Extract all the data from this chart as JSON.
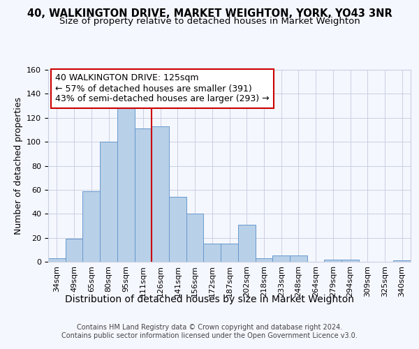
{
  "title1": "40, WALKINGTON DRIVE, MARKET WEIGHTON, YORK, YO43 3NR",
  "title2": "Size of property relative to detached houses in Market Weighton",
  "xlabel": "Distribution of detached houses by size in Market Weighton",
  "ylabel": "Number of detached properties",
  "categories": [
    "34sqm",
    "49sqm",
    "65sqm",
    "80sqm",
    "95sqm",
    "111sqm",
    "126sqm",
    "141sqm",
    "156sqm",
    "172sqm",
    "187sqm",
    "202sqm",
    "218sqm",
    "233sqm",
    "248sqm",
    "264sqm",
    "279sqm",
    "294sqm",
    "309sqm",
    "325sqm",
    "340sqm"
  ],
  "values": [
    3,
    19,
    59,
    100,
    133,
    111,
    113,
    54,
    40,
    15,
    15,
    31,
    3,
    5,
    5,
    0,
    2,
    2,
    0,
    0,
    1
  ],
  "bar_color": "#b8d0e8",
  "bar_edge_color": "#6699cc",
  "vline_color": "#cc0000",
  "vline_x_index": 5.5,
  "annotation_line1": "40 WALKINGTON DRIVE: 125sqm",
  "annotation_line2": "← 57% of detached houses are smaller (391)",
  "annotation_line3": "43% of semi-detached houses are larger (293) →",
  "footer1": "Contains HM Land Registry data © Crown copyright and database right 2024.",
  "footer2": "Contains public sector information licensed under the Open Government Licence v3.0.",
  "background_color": "#f5f7ff",
  "plot_bg_color": "#f5f7ff",
  "grid_color": "#c8d0e0",
  "ylim": [
    0,
    160
  ],
  "title_fontsize": 10.5,
  "subtitle_fontsize": 9.5,
  "ylabel_fontsize": 9,
  "xlabel_fontsize": 10,
  "tick_fontsize": 8,
  "annotation_fontsize": 9,
  "footer_fontsize": 7
}
